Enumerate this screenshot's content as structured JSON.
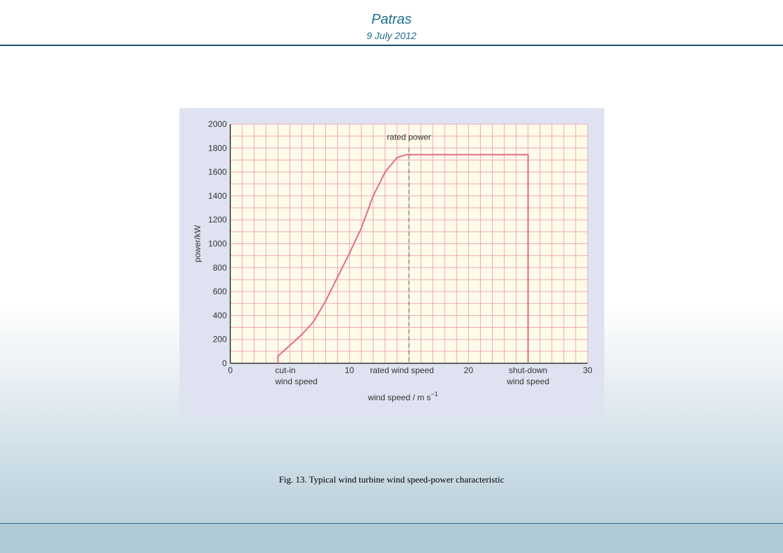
{
  "header": {
    "title": "Patras",
    "date": "9 July 2012"
  },
  "caption": "Fig. 13. Typical  wind turbine wind speed-power characteristic",
  "chart_data": {
    "type": "line",
    "xlabel": "wind speed / m s",
    "xlabel_superscript": "−1",
    "ylabel": "power/kW",
    "xlim": [
      0,
      30
    ],
    "ylim": [
      0,
      2000
    ],
    "x_ticks": [
      0,
      10,
      20,
      30
    ],
    "y_ticks": [
      0,
      200,
      400,
      600,
      800,
      1000,
      1200,
      1400,
      1600,
      1800,
      2000
    ],
    "grid": true,
    "series": [
      {
        "x": [
          4,
          4,
          5,
          6,
          7,
          8,
          9,
          10,
          11,
          12,
          13,
          14,
          14.8,
          15,
          17,
          19,
          21,
          23,
          24.8,
          25,
          25
        ],
        "y": [
          0,
          60,
          150,
          240,
          350,
          520,
          720,
          920,
          1130,
          1400,
          1600,
          1720,
          1745,
          1745,
          1745,
          1745,
          1745,
          1745,
          1745,
          1745,
          0
        ]
      }
    ],
    "annotations": {
      "rated_power": "rated power",
      "cut_in_line1": "cut-in",
      "cut_in_line2": "wind speed",
      "rated_wind_speed": "rated wind speed",
      "shut_down_line1": "shut-down",
      "shut_down_line2": "wind speed"
    },
    "annotation_x": {
      "cut_in": 4,
      "rated": 15,
      "shut_down": 25
    },
    "colors": {
      "plot_background": "#fefce8",
      "grid": "#f2a6b6",
      "curve": "#e56a8d",
      "axis": "#333333",
      "text": "#333333",
      "frame_background": "#dfe3f1"
    }
  }
}
